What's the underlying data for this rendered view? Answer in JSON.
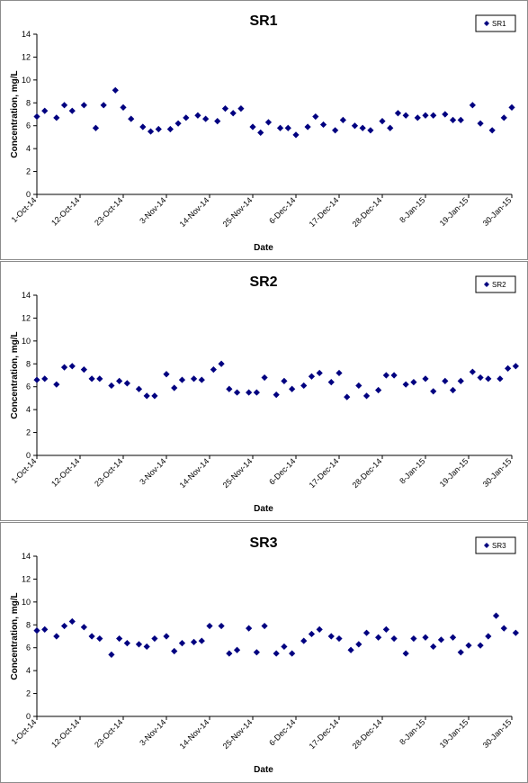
{
  "chart_data": [
    {
      "type": "scatter",
      "title": "SR1",
      "xlabel": "Date",
      "ylabel": "Concentration, mg/L",
      "ylim": [
        0,
        14
      ],
      "yticks": [
        0,
        2,
        4,
        6,
        8,
        10,
        12,
        14
      ],
      "xticks": [
        "1-Oct-14",
        "12-Oct-14",
        "23-Oct-14",
        "3-Nov-14",
        "14-Nov-14",
        "25-Nov-14",
        "6-Dec-14",
        "17-Dec-14",
        "28-Dec-14",
        "8-Jan-15",
        "19-Jan-15",
        "30-Jan-15"
      ],
      "legend": "top-right",
      "grid": false,
      "marker_color": "#000080",
      "series": [
        {
          "name": "SR1",
          "x": [
            "2014-10-01",
            "2014-10-03",
            "2014-10-06",
            "2014-10-08",
            "2014-10-10",
            "2014-10-13",
            "2014-10-16",
            "2014-10-18",
            "2014-10-21",
            "2014-10-23",
            "2014-10-25",
            "2014-10-28",
            "2014-10-30",
            "2014-11-01",
            "2014-11-04",
            "2014-11-06",
            "2014-11-08",
            "2014-11-11",
            "2014-11-13",
            "2014-11-16",
            "2014-11-18",
            "2014-11-20",
            "2014-11-22",
            "2014-11-25",
            "2014-11-27",
            "2014-11-29",
            "2014-12-02",
            "2014-12-04",
            "2014-12-06",
            "2014-12-09",
            "2014-12-11",
            "2014-12-13",
            "2014-12-16",
            "2014-12-18",
            "2014-12-21",
            "2014-12-23",
            "2014-12-25",
            "2014-12-28",
            "2014-12-30",
            "2015-01-01",
            "2015-01-03",
            "2015-01-06",
            "2015-01-08",
            "2015-01-10",
            "2015-01-13",
            "2015-01-15",
            "2015-01-17",
            "2015-01-20",
            "2015-01-22",
            "2015-01-25",
            "2015-01-28",
            "2015-01-30"
          ],
          "y": [
            6.8,
            7.3,
            6.7,
            7.8,
            7.3,
            7.8,
            5.8,
            7.8,
            9.1,
            7.6,
            6.6,
            5.9,
            5.5,
            5.7,
            5.7,
            6.2,
            6.7,
            6.9,
            6.6,
            6.4,
            7.5,
            7.1,
            7.5,
            5.9,
            5.4,
            6.3,
            5.8,
            5.8,
            5.2,
            5.9,
            6.8,
            6.1,
            5.6,
            6.5,
            6.0,
            5.8,
            5.6,
            6.4,
            5.8,
            7.1,
            6.9,
            6.7,
            6.9,
            6.9,
            7.0,
            6.5,
            6.5,
            7.8,
            6.2,
            5.6,
            6.7,
            7.6
          ]
        }
      ]
    },
    {
      "type": "scatter",
      "title": "SR2",
      "xlabel": "Date",
      "ylabel": "Concentration, mg/L",
      "ylim": [
        0,
        14
      ],
      "yticks": [
        0,
        2,
        4,
        6,
        8,
        10,
        12,
        14
      ],
      "xticks": [
        "1-Oct-14",
        "12-Oct-14",
        "23-Oct-14",
        "3-Nov-14",
        "14-Nov-14",
        "25-Nov-14",
        "6-Dec-14",
        "17-Dec-14",
        "28-Dec-14",
        "8-Jan-15",
        "19-Jan-15",
        "30-Jan-15"
      ],
      "legend": "top-right",
      "grid": false,
      "marker_color": "#000080",
      "series": [
        {
          "name": "SR2",
          "x": [
            "2014-10-01",
            "2014-10-03",
            "2014-10-06",
            "2014-10-08",
            "2014-10-10",
            "2014-10-13",
            "2014-10-15",
            "2014-10-17",
            "2014-10-20",
            "2014-10-22",
            "2014-10-24",
            "2014-10-27",
            "2014-10-29",
            "2014-10-31",
            "2014-11-03",
            "2014-11-05",
            "2014-11-07",
            "2014-11-10",
            "2014-11-12",
            "2014-11-15",
            "2014-11-17",
            "2014-11-19",
            "2014-11-21",
            "2014-11-24",
            "2014-11-26",
            "2014-11-28",
            "2014-12-01",
            "2014-12-03",
            "2014-12-05",
            "2014-12-08",
            "2014-12-10",
            "2014-12-12",
            "2014-12-15",
            "2014-12-17",
            "2014-12-19",
            "2014-12-22",
            "2014-12-24",
            "2014-12-27",
            "2014-12-29",
            "2014-12-31",
            "2015-01-03",
            "2015-01-05",
            "2015-01-08",
            "2015-01-10",
            "2015-01-13",
            "2015-01-15",
            "2015-01-17",
            "2015-01-20",
            "2015-01-22",
            "2015-01-24",
            "2015-01-27",
            "2015-01-29",
            "2015-01-31"
          ],
          "y": [
            6.6,
            6.7,
            6.2,
            7.7,
            7.8,
            7.5,
            6.7,
            6.7,
            6.1,
            6.5,
            6.3,
            5.8,
            5.2,
            5.2,
            7.1,
            5.9,
            6.6,
            6.7,
            6.6,
            7.5,
            8.0,
            5.8,
            5.5,
            5.5,
            5.5,
            6.8,
            5.3,
            6.5,
            5.8,
            6.1,
            6.9,
            7.2,
            6.4,
            7.2,
            5.1,
            6.1,
            5.2,
            5.7,
            7.0,
            7.0,
            6.2,
            6.4,
            6.7,
            5.6,
            6.5,
            5.7,
            6.5,
            7.3,
            6.8,
            6.7,
            6.7,
            7.6,
            7.8
          ]
        }
      ]
    },
    {
      "type": "scatter",
      "title": "SR3",
      "xlabel": "Date",
      "ylabel": "Concentration, mg/L",
      "ylim": [
        0,
        14
      ],
      "yticks": [
        0,
        2,
        4,
        6,
        8,
        10,
        12,
        14
      ],
      "xticks": [
        "1-Oct-14",
        "12-Oct-14",
        "23-Oct-14",
        "3-Nov-14",
        "14-Nov-14",
        "25-Nov-14",
        "6-Dec-14",
        "17-Dec-14",
        "28-Dec-14",
        "8-Jan-15",
        "19-Jan-15",
        "30-Jan-15"
      ],
      "legend": "top-right",
      "grid": false,
      "marker_color": "#000080",
      "series": [
        {
          "name": "SR3",
          "x": [
            "2014-10-01",
            "2014-10-03",
            "2014-10-06",
            "2014-10-08",
            "2014-10-10",
            "2014-10-13",
            "2014-10-15",
            "2014-10-17",
            "2014-10-20",
            "2014-10-22",
            "2014-10-24",
            "2014-10-27",
            "2014-10-29",
            "2014-10-31",
            "2014-11-03",
            "2014-11-05",
            "2014-11-07",
            "2014-11-10",
            "2014-11-12",
            "2014-11-14",
            "2014-11-17",
            "2014-11-19",
            "2014-11-21",
            "2014-11-24",
            "2014-11-26",
            "2014-11-28",
            "2014-12-01",
            "2014-12-03",
            "2014-12-05",
            "2014-12-08",
            "2014-12-10",
            "2014-12-12",
            "2014-12-15",
            "2014-12-17",
            "2014-12-20",
            "2014-12-22",
            "2014-12-24",
            "2014-12-27",
            "2014-12-29",
            "2014-12-31",
            "2015-01-03",
            "2015-01-05",
            "2015-01-08",
            "2015-01-10",
            "2015-01-12",
            "2015-01-15",
            "2015-01-17",
            "2015-01-19",
            "2015-01-22",
            "2015-01-24",
            "2015-01-26",
            "2015-01-28",
            "2015-01-31"
          ],
          "y": [
            7.5,
            7.6,
            7.0,
            7.9,
            8.3,
            7.8,
            7.0,
            6.8,
            5.4,
            6.8,
            6.4,
            6.3,
            6.1,
            6.8,
            7.0,
            5.7,
            6.4,
            6.5,
            6.6,
            7.9,
            7.9,
            5.5,
            5.8,
            7.7,
            5.6,
            7.9,
            5.5,
            6.1,
            5.5,
            6.6,
            7.2,
            7.6,
            7.0,
            6.8,
            5.8,
            6.3,
            7.3,
            6.9,
            7.6,
            6.8,
            5.5,
            6.8,
            6.9,
            6.1,
            6.7,
            6.9,
            5.6,
            6.2,
            6.2,
            7.0,
            8.8,
            7.7,
            7.3
          ]
        }
      ]
    }
  ]
}
